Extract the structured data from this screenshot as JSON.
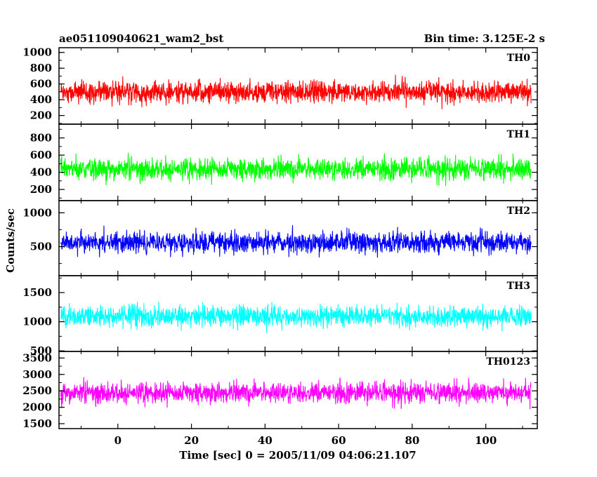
{
  "chart_data": {
    "type": "line",
    "title_left": "ae051109040621_wam2_bst",
    "title_right": "Bin time: 3.125E-2 s",
    "xlabel": "Time [sec] 0 = 2005/11/09 04:06:21.107",
    "ylabel": "Counts/sec",
    "xlim": [
      -16,
      114
    ],
    "x_data_range": [
      -15.5,
      112.3
    ],
    "xticks": [
      0,
      20,
      40,
      60,
      80,
      100
    ],
    "xtick_labels": [
      "0",
      "20",
      "40",
      "60",
      "80",
      "100"
    ],
    "panels": [
      {
        "name": "TH0",
        "color": "#ff0000",
        "ylim": [
          90,
          1060
        ],
        "yticks": [
          200,
          400,
          600,
          800,
          1000
        ],
        "ytick_labels": [
          "200",
          "400",
          "600",
          "800",
          "1000"
        ],
        "mean": 500,
        "spread": 420
      },
      {
        "name": "TH1",
        "color": "#00ff00",
        "ylim": [
          70,
          960
        ],
        "yticks": [
          200,
          400,
          600,
          800
        ],
        "ytick_labels": [
          "200",
          "400",
          "600",
          "800"
        ],
        "mean": 440,
        "spread": 390
      },
      {
        "name": "TH2",
        "color": "#0000ff",
        "ylim": [
          70,
          1180
        ],
        "yticks": [
          500,
          1000
        ],
        "ytick_labels": [
          "500",
          "1000"
        ],
        "mean": 560,
        "spread": 480
      },
      {
        "name": "TH3",
        "color": "#00ffff",
        "ylim": [
          490,
          1790
        ],
        "yticks": [
          500,
          1000,
          1500
        ],
        "ytick_labels": [
          "500",
          "1000",
          "1500"
        ],
        "mean": 1090,
        "spread": 560
      },
      {
        "name": "TH0123",
        "color": "#ff00ff",
        "ylim": [
          1350,
          3700
        ],
        "yticks": [
          1500,
          2000,
          2500,
          3000,
          3500
        ],
        "ytick_labels": [
          "1500",
          "2000",
          "2500",
          "3000",
          "3500"
        ],
        "mean": 2450,
        "spread": 980
      }
    ]
  }
}
